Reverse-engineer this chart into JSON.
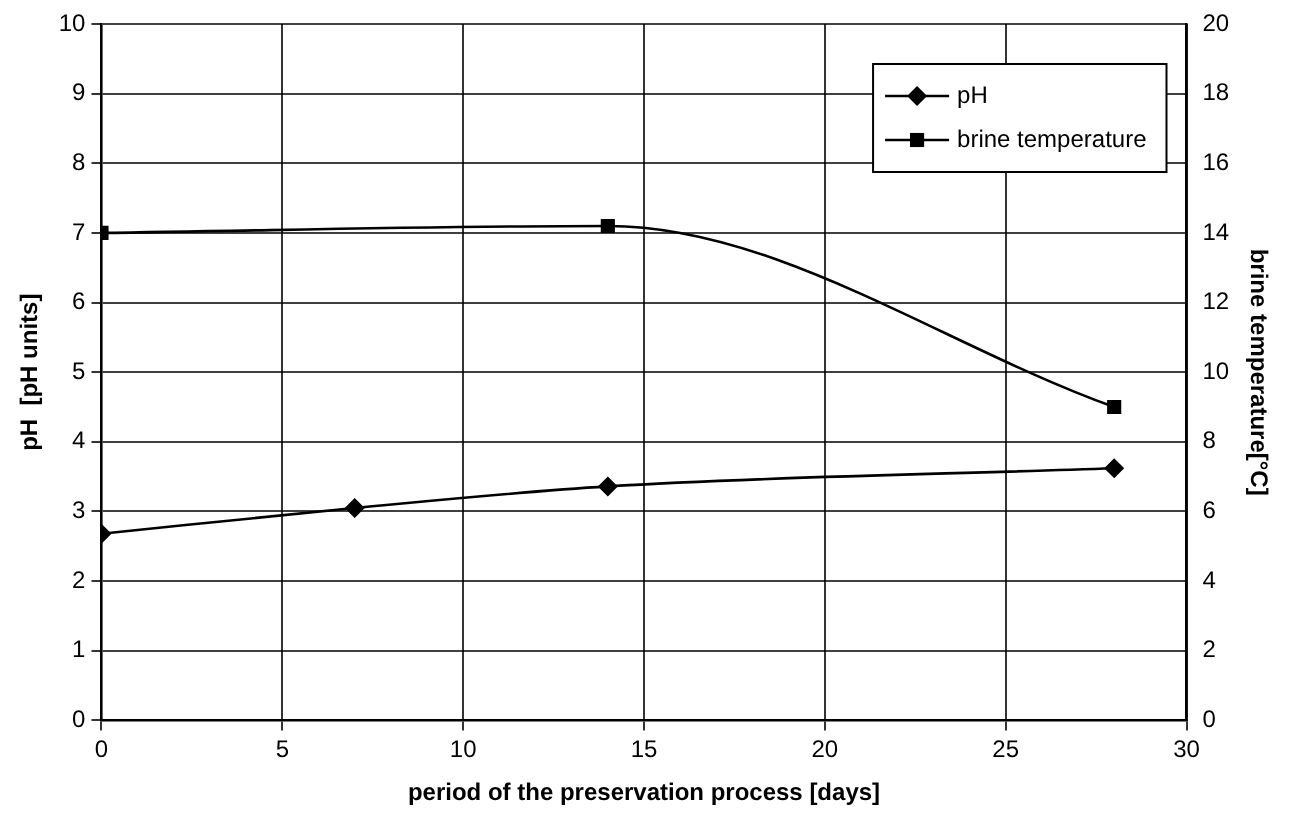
{
  "chart_data": {
    "type": "line",
    "xlabel": "period of the preservation process [days]",
    "ylabel": "pH  [pH units]",
    "y2label": "brine temperature[°C]",
    "series": [
      {
        "name": "pH",
        "color": "#000000",
        "x": [
          0,
          7,
          14,
          28
        ],
        "values": [
          2.68,
          3.05,
          3.36,
          3.62
        ],
        "marker": "diamond"
      },
      {
        "name": "brine temperature",
        "color": "#000000",
        "x": [
          0,
          14,
          28
        ],
        "values": [
          14,
          14.2,
          9
        ],
        "marker": "square",
        "axis": "y2"
      }
    ],
    "xlim": [
      0,
      30
    ],
    "xticks": [
      0,
      5,
      10,
      15,
      20,
      25,
      30
    ],
    "ylim": [
      0,
      10
    ],
    "yticks": [
      0,
      1,
      2,
      3,
      4,
      5,
      6,
      7,
      8,
      9,
      10
    ],
    "y2lim": [
      0,
      20
    ],
    "y2ticks": [
      0,
      2,
      4,
      6,
      8,
      10,
      12,
      14,
      16,
      18,
      20
    ],
    "grid": true,
    "line_style": "solid",
    "legend": "top right"
  }
}
